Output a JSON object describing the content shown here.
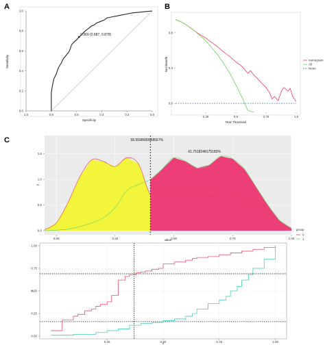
{
  "panels": {
    "a": "A",
    "b": "B",
    "c": "C"
  },
  "chart_data": [
    {
      "id": "roc",
      "type": "line",
      "title": "",
      "xlabel": "Specificity",
      "ylabel": "Sensitivity",
      "xlim": [
        1.0,
        0.0
      ],
      "ylim": [
        0.0,
        1.0
      ],
      "xticks": [
        "1.0",
        "0.8",
        "0.6",
        "0.4",
        "0.2",
        "0.0"
      ],
      "yticks": [
        "0.0",
        "0.2",
        "0.4",
        "0.6",
        "0.8",
        "1.0"
      ],
      "annotation": "0.369 (0.687, 0.878)",
      "curve": {
        "x": [
          0.8,
          0.8,
          0.79,
          0.78,
          0.76,
          0.75,
          0.74,
          0.72,
          0.71,
          0.7,
          0.68,
          0.66,
          0.65,
          0.64,
          0.62,
          0.6,
          0.58,
          0.56,
          0.54,
          0.52,
          0.5,
          0.48,
          0.46,
          0.44,
          0.42,
          0.4,
          0.38,
          0.36,
          0.32,
          0.28,
          0.24,
          0.2,
          0.16,
          0.12,
          0.08,
          0.04,
          0.0
        ],
        "y": [
          0.0,
          0.18,
          0.26,
          0.32,
          0.37,
          0.41,
          0.44,
          0.48,
          0.51,
          0.53,
          0.56,
          0.59,
          0.62,
          0.66,
          0.69,
          0.71,
          0.74,
          0.76,
          0.79,
          0.81,
          0.83,
          0.85,
          0.86,
          0.88,
          0.89,
          0.9,
          0.91,
          0.93,
          0.94,
          0.95,
          0.96,
          0.97,
          0.98,
          0.985,
          0.99,
          0.995,
          1.0
        ]
      },
      "diagonal": {
        "x": [
          0.8,
          0.0
        ],
        "y": [
          0.0,
          1.0
        ]
      }
    },
    {
      "id": "dca",
      "type": "line",
      "title": "",
      "xlabel": "Risk Threshold",
      "ylabel": "Net Benefit",
      "xlim": [
        0.0,
        1.0
      ],
      "ylim": [
        -0.1,
        1.0
      ],
      "xticks": [
        "0.25",
        "0.5",
        "0.75",
        "1.0"
      ],
      "yticks": [
        "0.0",
        "0.4",
        "0.8"
      ],
      "legend": {
        "placement": "right",
        "entries": [
          "nomogram",
          "All",
          "None"
        ]
      },
      "series": [
        {
          "name": "nomogram",
          "color": "#f0506e",
          "x": [
            0.0,
            0.05,
            0.1,
            0.15,
            0.2,
            0.25,
            0.3,
            0.35,
            0.4,
            0.45,
            0.5,
            0.55,
            0.6,
            0.62,
            0.65,
            0.68,
            0.7,
            0.72,
            0.75,
            0.78,
            0.8,
            0.82,
            0.85,
            0.88,
            0.9,
            0.93,
            0.95,
            0.97,
            1.0
          ],
          "y": [
            0.95,
            0.92,
            0.88,
            0.83,
            0.78,
            0.74,
            0.69,
            0.64,
            0.58,
            0.53,
            0.47,
            0.42,
            0.34,
            0.37,
            0.32,
            0.28,
            0.25,
            0.22,
            0.18,
            0.12,
            0.05,
            0.08,
            0.03,
            0.15,
            0.18,
            0.14,
            0.17,
            0.08,
            0.02
          ]
        },
        {
          "name": "All",
          "color": "#7ad36a",
          "x": [
            0.0,
            0.05,
            0.1,
            0.15,
            0.2,
            0.25,
            0.3,
            0.35,
            0.4,
            0.45,
            0.5,
            0.55,
            0.6,
            0.65
          ],
          "y": [
            0.95,
            0.92,
            0.88,
            0.83,
            0.77,
            0.71,
            0.63,
            0.55,
            0.45,
            0.34,
            0.21,
            0.07,
            -0.08,
            -0.1
          ]
        },
        {
          "name": "None",
          "color": "#4a8fd4",
          "dashed": true,
          "x": [
            0.0,
            1.0
          ],
          "y": [
            0.0,
            0.0
          ]
        }
      ]
    },
    {
      "id": "density",
      "type": "area",
      "title": "",
      "xlabel": "value",
      "ylabel": "y",
      "xlim": [
        -0.05,
        1.0
      ],
      "ylim": [
        0.0,
        1.8
      ],
      "xticks": [
        "0.00",
        "0.25",
        "0.50",
        "0.75",
        "1.00"
      ],
      "yticks": [
        "0.0",
        "0.5",
        "1.0",
        "1.5"
      ],
      "cutoff": 0.369,
      "cutoff_line": 0.4,
      "annotations": [
        "58.5598689968567%",
        "61.7518248175183%"
      ],
      "legend": {
        "title": "group",
        "entries": [
          "0",
          "1"
        ]
      },
      "series": [
        {
          "name": "0",
          "color": "#e8506e",
          "x": [
            -0.05,
            0.0,
            0.05,
            0.1,
            0.15,
            0.2,
            0.25,
            0.3,
            0.35,
            0.4,
            0.45,
            0.5,
            0.55,
            0.6,
            0.65,
            0.7,
            0.75,
            0.8,
            0.85,
            0.9,
            0.95,
            1.0
          ],
          "y": [
            0.02,
            0.15,
            0.55,
            1.05,
            1.38,
            1.35,
            1.25,
            1.42,
            1.3,
            0.7,
            0.72,
            0.8,
            0.85,
            0.8,
            0.75,
            0.72,
            0.7,
            0.65,
            0.5,
            0.3,
            0.1,
            0.02
          ]
        },
        {
          "name": "1",
          "color": "#7ad36a",
          "x": [
            -0.05,
            0.0,
            0.05,
            0.1,
            0.15,
            0.2,
            0.25,
            0.3,
            0.35,
            0.4,
            0.45,
            0.5,
            0.55,
            0.6,
            0.65,
            0.7,
            0.75,
            0.8,
            0.85,
            0.9,
            0.95,
            1.0
          ],
          "y": [
            0.0,
            0.01,
            0.03,
            0.08,
            0.15,
            0.25,
            0.45,
            0.78,
            0.9,
            1.0,
            1.2,
            1.42,
            1.35,
            1.22,
            1.28,
            1.45,
            1.4,
            1.2,
            0.85,
            0.5,
            0.2,
            0.05
          ]
        }
      ],
      "fills": {
        "left": "#f2f53a",
        "right": "#ee3e78"
      }
    },
    {
      "id": "ecdf",
      "type": "line",
      "title": "",
      "xlabel": "x",
      "ylabel": "y",
      "xlim": [
        -0.05,
        1.05
      ],
      "ylim": [
        0.0,
        1.0
      ],
      "xticks": [
        "0.25",
        "0.50",
        "0.75",
        "1.00"
      ],
      "yticks": [
        "0.00",
        "0.25",
        "0.50",
        "0.75",
        "1.00"
      ],
      "vline": 0.37,
      "hlines": [
        0.69,
        0.16
      ],
      "series": [
        {
          "name": "0",
          "color": "#e8506e",
          "x": [
            0.0,
            0.05,
            0.1,
            0.12,
            0.15,
            0.18,
            0.2,
            0.22,
            0.25,
            0.27,
            0.3,
            0.33,
            0.35,
            0.38,
            0.4,
            0.42,
            0.45,
            0.48,
            0.5,
            0.55,
            0.6,
            0.63,
            0.65,
            0.7,
            0.75,
            0.8,
            0.85,
            0.9,
            0.95,
            1.0
          ],
          "y": [
            0.06,
            0.18,
            0.22,
            0.24,
            0.28,
            0.3,
            0.33,
            0.35,
            0.38,
            0.45,
            0.62,
            0.66,
            0.68,
            0.7,
            0.71,
            0.72,
            0.74,
            0.75,
            0.8,
            0.82,
            0.84,
            0.86,
            0.87,
            0.88,
            0.9,
            0.92,
            0.94,
            0.96,
            0.98,
            1.0
          ]
        },
        {
          "name": "1",
          "color": "#3fd1b5",
          "x": [
            0.0,
            0.1,
            0.2,
            0.25,
            0.3,
            0.35,
            0.4,
            0.45,
            0.5,
            0.55,
            0.6,
            0.63,
            0.65,
            0.7,
            0.75,
            0.78,
            0.8,
            0.83,
            0.85,
            0.88,
            0.9,
            0.95,
            1.0
          ],
          "y": [
            0.01,
            0.02,
            0.04,
            0.06,
            0.08,
            0.12,
            0.14,
            0.15,
            0.17,
            0.19,
            0.22,
            0.25,
            0.3,
            0.36,
            0.4,
            0.44,
            0.5,
            0.55,
            0.62,
            0.68,
            0.75,
            0.85,
            1.0
          ]
        }
      ]
    }
  ]
}
